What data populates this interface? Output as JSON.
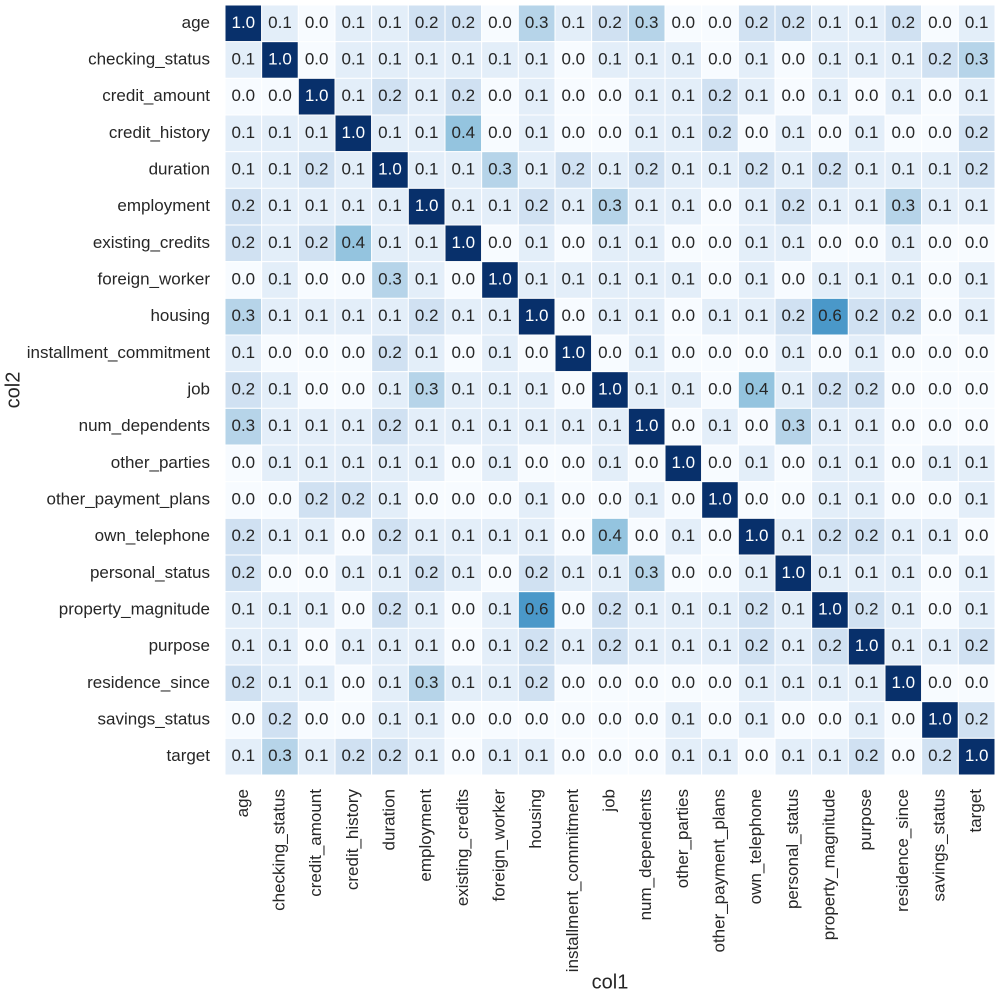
{
  "chart_data": {
    "type": "heatmap",
    "cmap": "Blues",
    "xlabel": "col1",
    "ylabel": "col2",
    "xcategories": [
      "age",
      "checking_status",
      "credit_amount",
      "credit_history",
      "duration",
      "employment",
      "existing_credits",
      "foreign_worker",
      "housing",
      "installment_commitment",
      "job",
      "num_dependents",
      "other_parties",
      "other_payment_plans",
      "own_telephone",
      "personal_status",
      "property_magnitude",
      "purpose",
      "residence_since",
      "savings_status",
      "target"
    ],
    "ycategories": [
      "age",
      "checking_status",
      "credit_amount",
      "credit_history",
      "duration",
      "employment",
      "existing_credits",
      "foreign_worker",
      "housing",
      "installment_commitment",
      "job",
      "num_dependents",
      "other_parties",
      "other_payment_plans",
      "own_telephone",
      "personal_status",
      "property_magnitude",
      "purpose",
      "residence_since",
      "savings_status",
      "target"
    ],
    "values": [
      [
        1.0,
        0.1,
        0.0,
        0.1,
        0.1,
        0.2,
        0.2,
        0.0,
        0.3,
        0.1,
        0.2,
        0.3,
        0.0,
        0.0,
        0.2,
        0.2,
        0.1,
        0.1,
        0.2,
        0.0,
        0.1
      ],
      [
        0.1,
        1.0,
        0.0,
        0.1,
        0.1,
        0.1,
        0.1,
        0.1,
        0.1,
        0.0,
        0.1,
        0.1,
        0.1,
        0.0,
        0.1,
        0.0,
        0.1,
        0.1,
        0.1,
        0.2,
        0.3
      ],
      [
        0.0,
        0.0,
        1.0,
        0.1,
        0.2,
        0.1,
        0.2,
        0.0,
        0.1,
        0.0,
        0.0,
        0.1,
        0.1,
        0.2,
        0.1,
        0.0,
        0.1,
        0.0,
        0.1,
        0.0,
        0.1
      ],
      [
        0.1,
        0.1,
        0.1,
        1.0,
        0.1,
        0.1,
        0.4,
        0.0,
        0.1,
        0.0,
        0.0,
        0.1,
        0.1,
        0.2,
        0.0,
        0.1,
        0.0,
        0.1,
        0.0,
        0.0,
        0.2
      ],
      [
        0.1,
        0.1,
        0.2,
        0.1,
        1.0,
        0.1,
        0.1,
        0.3,
        0.1,
        0.2,
        0.1,
        0.2,
        0.1,
        0.1,
        0.2,
        0.1,
        0.2,
        0.1,
        0.1,
        0.1,
        0.2
      ],
      [
        0.2,
        0.1,
        0.1,
        0.1,
        0.1,
        1.0,
        0.1,
        0.1,
        0.2,
        0.1,
        0.3,
        0.1,
        0.1,
        0.0,
        0.1,
        0.2,
        0.1,
        0.1,
        0.3,
        0.1,
        0.1
      ],
      [
        0.2,
        0.1,
        0.2,
        0.4,
        0.1,
        0.1,
        1.0,
        0.0,
        0.1,
        0.0,
        0.1,
        0.1,
        0.0,
        0.0,
        0.1,
        0.1,
        0.0,
        0.0,
        0.1,
        0.0,
        0.0
      ],
      [
        0.0,
        0.1,
        0.0,
        0.0,
        0.3,
        0.1,
        0.0,
        1.0,
        0.1,
        0.1,
        0.1,
        0.1,
        0.1,
        0.0,
        0.1,
        0.0,
        0.1,
        0.1,
        0.1,
        0.0,
        0.1
      ],
      [
        0.3,
        0.1,
        0.1,
        0.1,
        0.1,
        0.2,
        0.1,
        0.1,
        1.0,
        0.0,
        0.1,
        0.1,
        0.0,
        0.1,
        0.1,
        0.2,
        0.6,
        0.2,
        0.2,
        0.0,
        0.1
      ],
      [
        0.1,
        0.0,
        0.0,
        0.0,
        0.2,
        0.1,
        0.0,
        0.1,
        0.0,
        1.0,
        0.0,
        0.1,
        0.0,
        0.0,
        0.0,
        0.1,
        0.0,
        0.1,
        0.0,
        0.0,
        0.0
      ],
      [
        0.2,
        0.1,
        0.0,
        0.0,
        0.1,
        0.3,
        0.1,
        0.1,
        0.1,
        0.0,
        1.0,
        0.1,
        0.1,
        0.0,
        0.4,
        0.1,
        0.2,
        0.2,
        0.0,
        0.0,
        0.0
      ],
      [
        0.3,
        0.1,
        0.1,
        0.1,
        0.2,
        0.1,
        0.1,
        0.1,
        0.1,
        0.1,
        0.1,
        1.0,
        0.0,
        0.1,
        0.0,
        0.3,
        0.1,
        0.1,
        0.0,
        0.0,
        0.0
      ],
      [
        0.0,
        0.1,
        0.1,
        0.1,
        0.1,
        0.1,
        0.0,
        0.1,
        0.0,
        0.0,
        0.1,
        0.0,
        1.0,
        0.0,
        0.1,
        0.0,
        0.1,
        0.1,
        0.0,
        0.1,
        0.1
      ],
      [
        0.0,
        0.0,
        0.2,
        0.2,
        0.1,
        0.0,
        0.0,
        0.0,
        0.1,
        0.0,
        0.0,
        0.1,
        0.0,
        1.0,
        0.0,
        0.0,
        0.1,
        0.1,
        0.0,
        0.0,
        0.1
      ],
      [
        0.2,
        0.1,
        0.1,
        0.0,
        0.2,
        0.1,
        0.1,
        0.1,
        0.1,
        0.0,
        0.4,
        0.0,
        0.1,
        0.0,
        1.0,
        0.1,
        0.2,
        0.2,
        0.1,
        0.1,
        0.0
      ],
      [
        0.2,
        0.0,
        0.0,
        0.1,
        0.1,
        0.2,
        0.1,
        0.0,
        0.2,
        0.1,
        0.1,
        0.3,
        0.0,
        0.0,
        0.1,
        1.0,
        0.1,
        0.1,
        0.1,
        0.0,
        0.1
      ],
      [
        0.1,
        0.1,
        0.1,
        0.0,
        0.2,
        0.1,
        0.0,
        0.1,
        0.6,
        0.0,
        0.2,
        0.1,
        0.1,
        0.1,
        0.2,
        0.1,
        1.0,
        0.2,
        0.1,
        0.0,
        0.1
      ],
      [
        0.1,
        0.1,
        0.0,
        0.1,
        0.1,
        0.1,
        0.0,
        0.1,
        0.2,
        0.1,
        0.2,
        0.1,
        0.1,
        0.1,
        0.2,
        0.1,
        0.2,
        1.0,
        0.1,
        0.1,
        0.2
      ],
      [
        0.2,
        0.1,
        0.1,
        0.0,
        0.1,
        0.3,
        0.1,
        0.1,
        0.2,
        0.0,
        0.0,
        0.0,
        0.0,
        0.0,
        0.1,
        0.1,
        0.1,
        0.1,
        1.0,
        0.0,
        0.0
      ],
      [
        0.0,
        0.2,
        0.0,
        0.0,
        0.1,
        0.1,
        0.0,
        0.0,
        0.0,
        0.0,
        0.0,
        0.0,
        0.1,
        0.0,
        0.1,
        0.0,
        0.0,
        0.1,
        0.0,
        1.0,
        0.2
      ],
      [
        0.1,
        0.3,
        0.1,
        0.2,
        0.2,
        0.1,
        0.0,
        0.1,
        0.1,
        0.0,
        0.0,
        0.0,
        0.1,
        0.1,
        0.0,
        0.1,
        0.1,
        0.2,
        0.0,
        0.2,
        1.0
      ]
    ],
    "value_labels": [
      [
        "1.0",
        "0.1",
        "0.0",
        "0.1",
        "0.1",
        "0.2",
        "0.2",
        "0.0",
        "0.3",
        "0.1",
        "0.2",
        "0.3",
        "0.0",
        "0.0",
        "0.2",
        "0.2",
        "0.1",
        "0.1",
        "0.2",
        "0.0",
        "0.1"
      ],
      [
        "0.1",
        "1.0",
        "0.0",
        "0.1",
        "0.1",
        "0.1",
        "0.1",
        "0.1",
        "0.1",
        "0.0",
        "0.1",
        "0.1",
        "0.1",
        "0.0",
        "0.1",
        "0.0",
        "0.1",
        "0.1",
        "0.1",
        "0.2",
        "0.3"
      ],
      [
        "0.0",
        "0.0",
        "1.0",
        "0.1",
        "0.2",
        "0.1",
        "0.2",
        "0.0",
        "0.1",
        "0.0",
        "0.0",
        "0.1",
        "0.1",
        "0.2",
        "0.1",
        "0.0",
        "0.1",
        "0.0",
        "0.1",
        "0.0",
        "0.1"
      ],
      [
        "0.1",
        "0.1",
        "0.1",
        "1.0",
        "0.1",
        "0.1",
        "0.4",
        "0.0",
        "0.1",
        "0.0",
        "0.0",
        "0.1",
        "0.1",
        "0.2",
        "0.0",
        "0.1",
        "0.0",
        "0.1",
        "0.0",
        "0.0",
        "0.2"
      ],
      [
        "0.1",
        "0.1",
        "0.2",
        "0.1",
        "1.0",
        "0.1",
        "0.1",
        "0.3",
        "0.1",
        "0.2",
        "0.1",
        "0.2",
        "0.1",
        "0.1",
        "0.2",
        "0.1",
        "0.2",
        "0.1",
        "0.1",
        "0.1",
        "0.2"
      ],
      [
        "0.2",
        "0.1",
        "0.1",
        "0.1",
        "0.1",
        "1.0",
        "0.1",
        "0.1",
        "0.2",
        "0.1",
        "0.3",
        "0.1",
        "0.1",
        "0.0",
        "0.1",
        "0.2",
        "0.1",
        "0.1",
        "0.3",
        "0.1",
        "0.1"
      ],
      [
        "0.2",
        "0.1",
        "0.2",
        "0.4",
        "0.1",
        "0.1",
        "1.0",
        "0.0",
        "0.1",
        "0.0",
        "0.1",
        "0.1",
        "0.0",
        "0.0",
        "0.1",
        "0.1",
        "0.0",
        "0.0",
        "0.1",
        "0.0",
        "0.0"
      ],
      [
        "0.0",
        "0.1",
        "0.0",
        "0.0",
        "0.3",
        "0.1",
        "0.0",
        "1.0",
        "0.1",
        "0.1",
        "0.1",
        "0.1",
        "0.1",
        "0.0",
        "0.1",
        "0.0",
        "0.1",
        "0.1",
        "0.1",
        "0.0",
        "0.1"
      ],
      [
        "0.3",
        "0.1",
        "0.1",
        "0.1",
        "0.1",
        "0.2",
        "0.1",
        "0.1",
        "1.0",
        "0.0",
        "0.1",
        "0.1",
        "0.0",
        "0.1",
        "0.1",
        "0.2",
        "0.6",
        "0.2",
        "0.2",
        "0.0",
        "0.1"
      ],
      [
        "0.1",
        "0.0",
        "0.0",
        "0.0",
        "0.2",
        "0.1",
        "0.0",
        "0.1",
        "0.0",
        "1.0",
        "0.0",
        "0.1",
        "0.0",
        "0.0",
        "0.0",
        "0.1",
        "0.0",
        "0.1",
        "0.0",
        "0.0",
        "0.0"
      ],
      [
        "0.2",
        "0.1",
        "0.0",
        "0.0",
        "0.1",
        "0.3",
        "0.1",
        "0.1",
        "0.1",
        "0.0",
        "1.0",
        "0.1",
        "0.1",
        "0.0",
        "0.4",
        "0.1",
        "0.2",
        "0.2",
        "0.0",
        "0.0",
        "0.0"
      ],
      [
        "0.3",
        "0.1",
        "0.1",
        "0.1",
        "0.2",
        "0.1",
        "0.1",
        "0.1",
        "0.1",
        "0.1",
        "0.1",
        "1.0",
        "0.0",
        "0.1",
        "0.0",
        "0.3",
        "0.1",
        "0.1",
        "0.0",
        "0.0",
        "0.0"
      ],
      [
        "0.0",
        "0.1",
        "0.1",
        "0.1",
        "0.1",
        "0.1",
        "0.0",
        "0.1",
        "0.0",
        "0.0",
        "0.1",
        "0.0",
        "1.0",
        "0.0",
        "0.1",
        "0.0",
        "0.1",
        "0.1",
        "0.0",
        "0.1",
        "0.1"
      ],
      [
        "0.0",
        "0.0",
        "0.2",
        "0.2",
        "0.1",
        "0.0",
        "0.0",
        "0.0",
        "0.1",
        "0.0",
        "0.0",
        "0.1",
        "0.0",
        "1.0",
        "0.0",
        "0.0",
        "0.1",
        "0.1",
        "0.0",
        "0.0",
        "0.1"
      ],
      [
        "0.2",
        "0.1",
        "0.1",
        "0.0",
        "0.2",
        "0.1",
        "0.1",
        "0.1",
        "0.1",
        "0.0",
        "0.4",
        "0.0",
        "0.1",
        "0.0",
        "1.0",
        "0.1",
        "0.2",
        "0.2",
        "0.1",
        "0.1",
        "0.0"
      ],
      [
        "0.2",
        "0.0",
        "0.0",
        "0.1",
        "0.1",
        "0.2",
        "0.1",
        "0.0",
        "0.2",
        "0.1",
        "0.1",
        "0.3",
        "0.0",
        "0.0",
        "0.1",
        "1.0",
        "0.1",
        "0.1",
        "0.1",
        "0.0",
        "0.1"
      ],
      [
        "0.1",
        "0.1",
        "0.1",
        "0.0",
        "0.2",
        "0.1",
        "0.0",
        "0.1",
        "0.6",
        "0.0",
        "0.2",
        "0.1",
        "0.1",
        "0.1",
        "0.2",
        "0.1",
        "1.0",
        "0.2",
        "0.1",
        "0.0",
        "0.1"
      ],
      [
        "0.1",
        "0.1",
        "0.0",
        "0.1",
        "0.1",
        "0.1",
        "0.0",
        "0.1",
        "0.2",
        "0.1",
        "0.2",
        "0.1",
        "0.1",
        "0.1",
        "0.2",
        "0.1",
        "0.2",
        "1.0",
        "0.1",
        "0.1",
        "0.2"
      ],
      [
        "0.2",
        "0.1",
        "0.1",
        "0.0",
        "0.1",
        "0.3",
        "0.1",
        "0.1",
        "0.2",
        "0.0",
        "0.0",
        "0.0",
        "0.0",
        "0.0",
        "0.1",
        "0.1",
        "0.1",
        "0.1",
        "1.0",
        "0.0",
        "0.0"
      ],
      [
        "0.0",
        "0.2",
        "0.0",
        "0.0",
        "0.1",
        "0.1",
        "0.0",
        "0.0",
        "0.0",
        "0.0",
        "0.0",
        "0.0",
        "0.1",
        "0.0",
        "0.1",
        "0.0",
        "0.0",
        "0.1",
        "0.0",
        "1.0",
        "0.2"
      ],
      [
        "0.1",
        "0.3",
        "0.1",
        "0.2",
        "0.2",
        "0.1",
        "0.0",
        "0.1",
        "0.1",
        "0.0",
        "0.0",
        "0.0",
        "0.1",
        "0.1",
        "0.0",
        "0.1",
        "0.1",
        "0.2",
        "0.0",
        "0.2",
        "1.0"
      ]
    ]
  }
}
